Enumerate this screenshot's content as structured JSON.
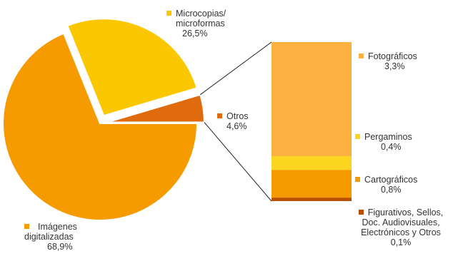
{
  "colors": {
    "imagenes": "#F59B00",
    "microcopias": "#FBC700",
    "otros": "#E06A0E",
    "fotograficos": "#FBB040",
    "pergaminos": "#FCD521",
    "cartograficos": "#F59B00",
    "figurativos": "#B85000",
    "connector": "#222222"
  },
  "chart_data": {
    "type": "pie",
    "slices": [
      {
        "key": "imagenes",
        "label_lines": [
          "Imágenes",
          "digitalizadas"
        ],
        "value_text": "68,9%",
        "value": 68.9
      },
      {
        "key": "microcopias",
        "label_lines": [
          "Microcopias/",
          "microformas"
        ],
        "value_text": "26,5%",
        "value": 26.5
      },
      {
        "key": "otros",
        "label_lines": [
          "Otros"
        ],
        "value_text": "4,6%",
        "value": 4.6
      }
    ],
    "breakdown": {
      "of": "otros",
      "type": "stacked-bar",
      "segments": [
        {
          "key": "fotograficos",
          "label_lines": [
            "Fotográficos"
          ],
          "value_text": "3,3%",
          "value": 3.3
        },
        {
          "key": "pergaminos",
          "label_lines": [
            "Pergaminos"
          ],
          "value_text": "0,4%",
          "value": 0.4
        },
        {
          "key": "cartograficos",
          "label_lines": [
            "Cartográficos"
          ],
          "value_text": "0,8%",
          "value": 0.8
        },
        {
          "key": "figurativos",
          "label_lines": [
            "Figurativos, Sellos,",
            "Doc. Audiovisuales,",
            "Electrónicos y Otros"
          ],
          "value_text": "0,1%",
          "value": 0.1
        }
      ]
    }
  }
}
